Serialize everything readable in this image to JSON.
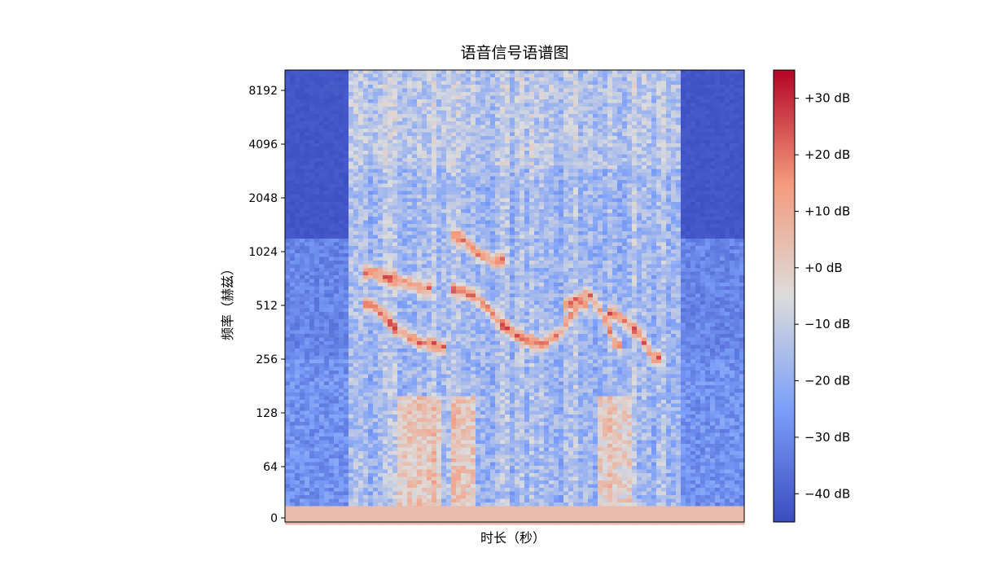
{
  "chart_data": {
    "type": "heatmap",
    "title": "语音信号语谱图",
    "xlabel": "时长（秒）",
    "ylabel": "频率（赫兹）",
    "y_scale": "log2",
    "y_ticks": [
      0,
      64,
      128,
      256,
      512,
      1024,
      2048,
      4096,
      8192
    ],
    "y_tick_labels": [
      "0",
      "64",
      "128",
      "256",
      "512",
      "1024",
      "2048",
      "4096",
      "8192"
    ],
    "x_ticks": [],
    "colormap": "coolwarm",
    "grid": false,
    "colorbar": {
      "range": [
        -45,
        35
      ],
      "ticks": [
        30,
        20,
        10,
        0,
        -10,
        -20,
        -30,
        -40
      ],
      "tick_labels": [
        "+30 dB",
        "+20 dB",
        "+10 dB",
        "+0 dB",
        "−10 dB",
        "−20 dB",
        "−30 dB",
        "−40 dB"
      ]
    },
    "features": {
      "silence_segments_time_fraction": [
        [
          0,
          0.14
        ],
        [
          0.86,
          1.0
        ]
      ],
      "low_band_db_constant": 5,
      "voiced_formant_tracks_hz": [
        {
          "t": [
            0.19,
            0.24,
            0.29,
            0.34
          ],
          "f": [
            520,
            380,
            320,
            300
          ]
        },
        {
          "t": [
            0.19,
            0.24,
            0.3
          ],
          "f": [
            780,
            720,
            640
          ]
        },
        {
          "t": [
            0.38,
            0.42,
            0.47,
            0.52,
            0.56,
            0.6,
            0.64
          ],
          "f": [
            620,
            560,
            400,
            330,
            310,
            360,
            520
          ]
        },
        {
          "t": [
            0.62,
            0.66,
            0.69,
            0.72
          ],
          "f": [
            520,
            600,
            460,
            310
          ]
        },
        {
          "t": [
            0.72,
            0.77,
            0.8
          ],
          "f": [
            460,
            360,
            260
          ]
        },
        {
          "t": [
            0.38,
            0.42,
            0.46
          ],
          "f": [
            1250,
            1000,
            900
          ]
        }
      ]
    }
  }
}
